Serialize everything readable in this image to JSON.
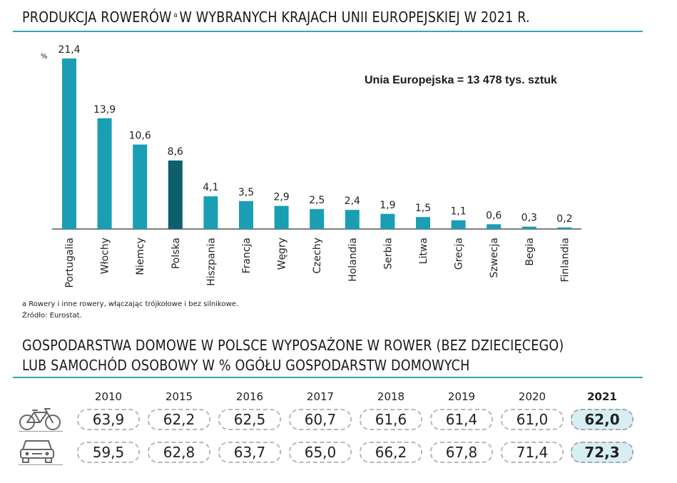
{
  "title1": {
    "text": "PRODUKCJA ROWERÓW",
    "footnote_marker": "a",
    "text_after": "W WYBRANYCH KRAJACH UNII EUROPEJSKIEJ W 2021 R."
  },
  "chart_data": {
    "type": "bar",
    "categories": [
      "Portugalia",
      "Włochy",
      "Niemcy",
      "Polska",
      "Hiszpania",
      "Francja",
      "Węgry",
      "Czechy",
      "Holandia",
      "Serbia",
      "Litwa",
      "Grecja",
      "Szwecja",
      "Begia",
      "Finlandia"
    ],
    "values": [
      21.4,
      13.9,
      10.6,
      8.6,
      4.1,
      3.5,
      2.9,
      2.5,
      2.4,
      1.9,
      1.5,
      1.1,
      0.6,
      0.3,
      0.2
    ],
    "value_labels": [
      "21,4",
      "13,9",
      "10,6",
      "8,6",
      "4,1",
      "3,5",
      "2,9",
      "2,5",
      "2,4",
      "1,9",
      "1,5",
      "1,1",
      "0,6",
      "0,3",
      "0,2"
    ],
    "unit": "%",
    "highlight": "Polska",
    "colors": {
      "bar": "#1a9eb4",
      "highlight": "#0d5f6d"
    },
    "annotation": "Unia Europejska = 13 478 tys. sztuk",
    "title": "",
    "xlabel": "",
    "ylabel": "%",
    "ylim": [
      0,
      21.4
    ],
    "grid": false,
    "legend": "none"
  },
  "footnotes": {
    "a": "a Rowery i inne rowery, włączając trójkołowe i bez silnikowe.",
    "source": "Źródło: Eurostat."
  },
  "title2": {
    "line1": "GOSPODARSTWA DOMOWE W POLSCE WYPOSAŻONE W ROWER (BEZ DZIECIĘCEGO)",
    "line2": "LUB SAMOCHÓD OSOBOWY W % OGÓŁU GOSPODARSTW DOMOWYCH"
  },
  "table": {
    "years": [
      "2010",
      "2015",
      "2016",
      "2017",
      "2018",
      "2019",
      "2020",
      "2021"
    ],
    "rows": [
      {
        "icon": "bicycle-icon",
        "values": [
          "63,9",
          "62,2",
          "62,5",
          "60,7",
          "61,6",
          "61,4",
          "61,0",
          "62,0"
        ]
      },
      {
        "icon": "car-icon",
        "values": [
          "59,5",
          "62,8",
          "63,7",
          "65,0",
          "66,2",
          "67,8",
          "71,4",
          "72,3"
        ]
      }
    ],
    "highlight_color": "#d8eef5"
  }
}
